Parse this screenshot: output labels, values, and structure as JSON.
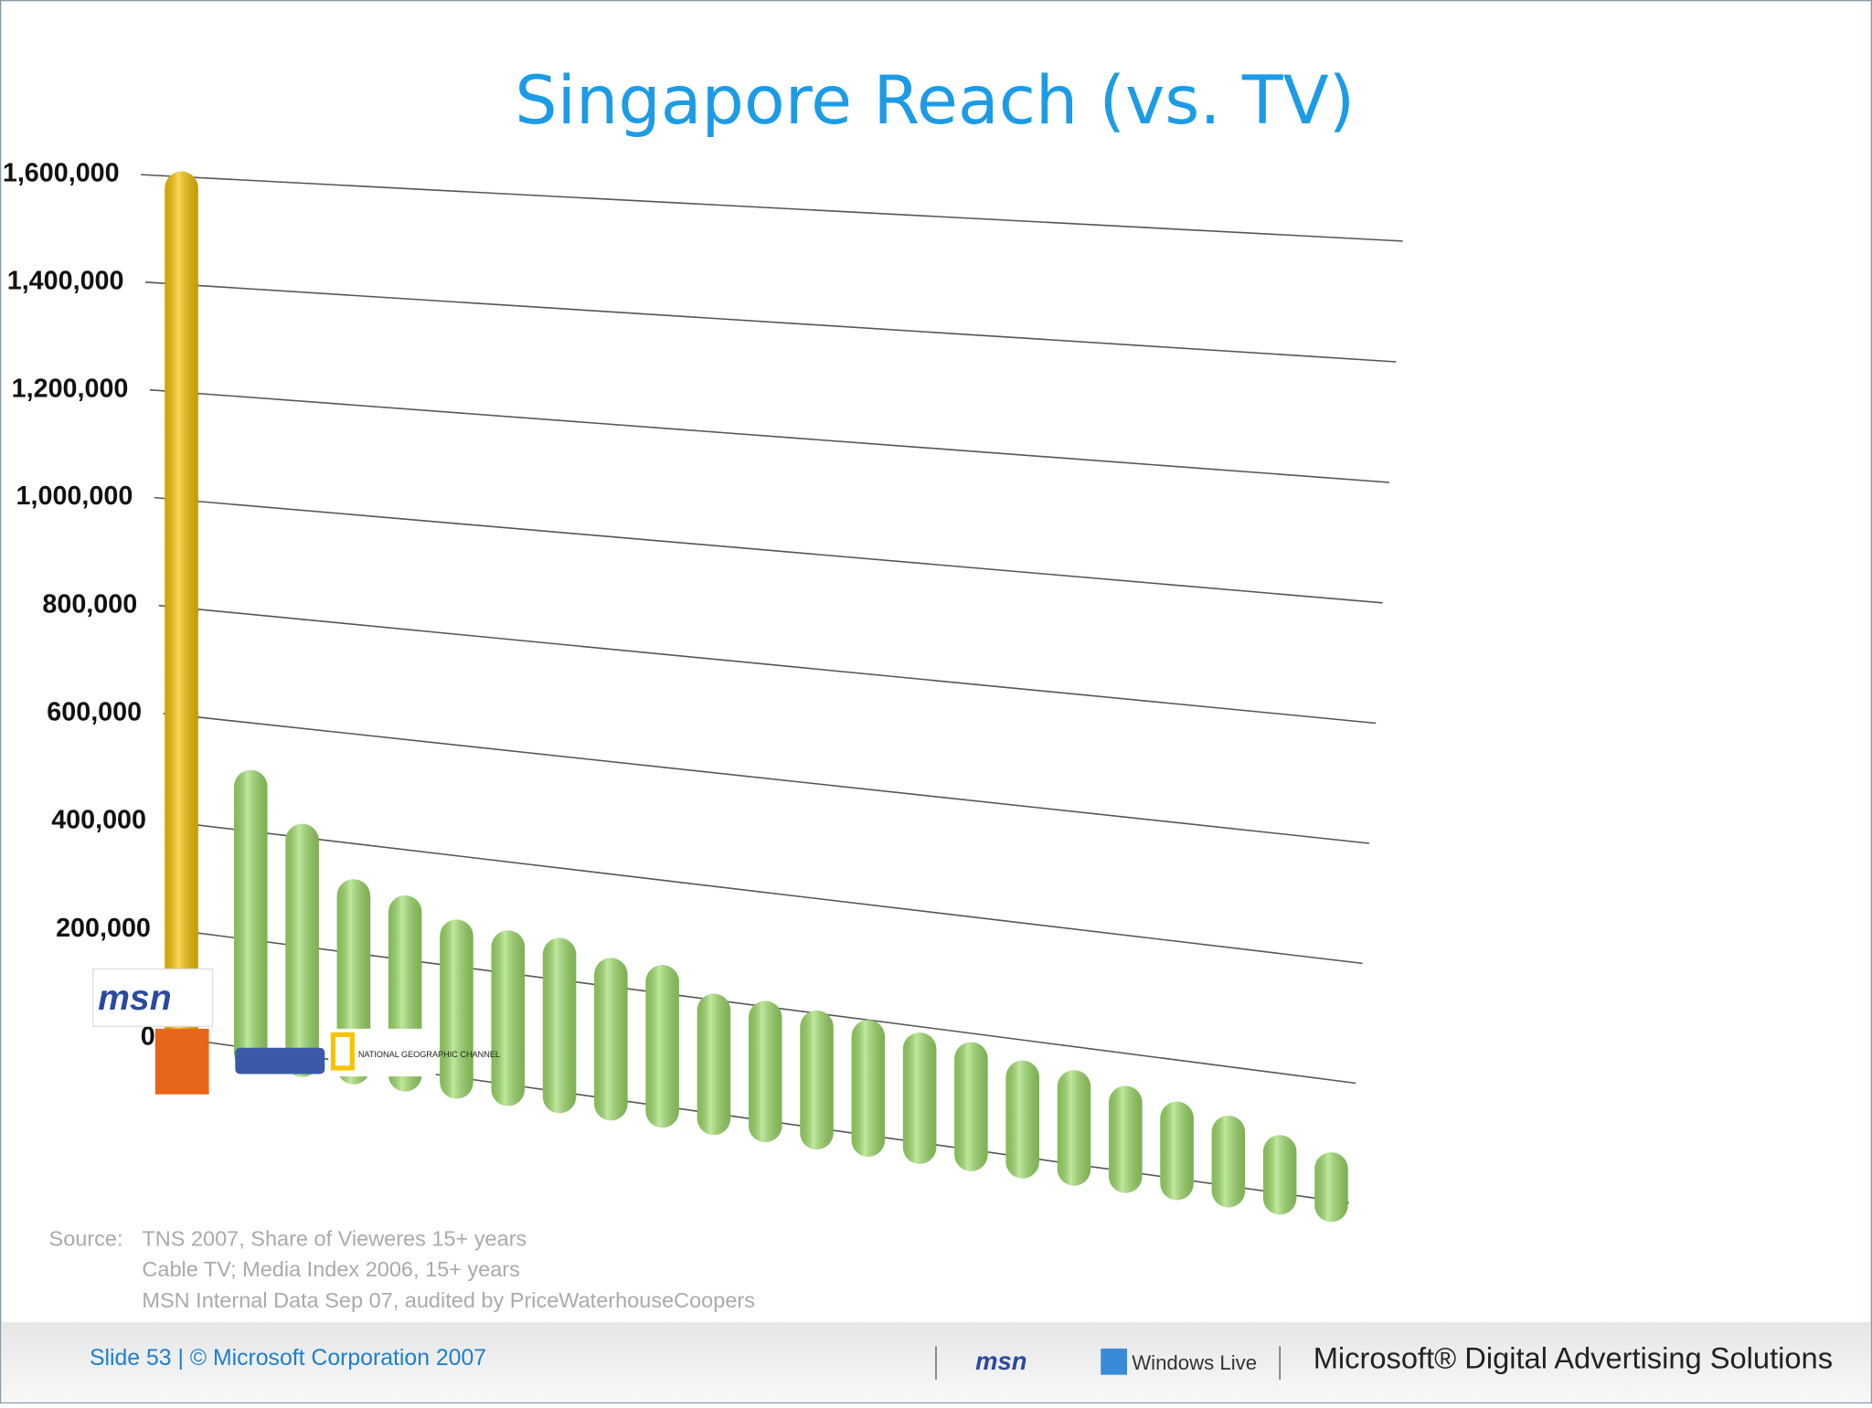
{
  "chart_data": {
    "type": "bar3d",
    "title": "Singapore Reach (vs. TV)",
    "categories": [
      null,
      null,
      null,
      null,
      null,
      null,
      null,
      null,
      null,
      null,
      null,
      null,
      null,
      null,
      null,
      null,
      null,
      null,
      null,
      null,
      null,
      null,
      null
    ],
    "values": [
      1610000,
      513000,
      425000,
      335000,
      317000,
      285000,
      277000,
      275000,
      251000,
      250000,
      211000,
      210000,
      205000,
      200000,
      190000,
      185000,
      165000,
      160000,
      145000,
      130000,
      118000,
      97000,
      80000
    ],
    "colors": [
      "#f7c300",
      "#9ddc68",
      "#9ddc68",
      "#9ddc68",
      "#9ddc68",
      "#9ddc68",
      "#9ddc68",
      "#9ddc68",
      "#9ddc68",
      "#9ddc68",
      "#9ddc68",
      "#9ddc68",
      "#9ddc68",
      "#9ddc68",
      "#9ddc68",
      "#9ddc68",
      "#9ddc68",
      "#9ddc68",
      "#9ddc68",
      "#9ddc68",
      "#9ddc68",
      "#9ddc68",
      "#9ddc68"
    ],
    "ylim": [
      0,
      1600000
    ],
    "yticks": [
      0,
      {
        "value": 200000,
        "label": "200,000"
      },
      {
        "value": 400000,
        "label": "400,000"
      },
      {
        "value": 600000,
        "label": "600,000"
      },
      {
        "value": 800000,
        "label": "800,000"
      },
      {
        "value": 1000000,
        "label": "1,000,000"
      },
      {
        "value": 1200000,
        "label": "1,200,000"
      },
      {
        "value": 1400000,
        "label": "1,400,000"
      },
      {
        "value": 1600000,
        "label": "1,600,000"
      }
    ],
    "grid": true,
    "logos": [
      "msn",
      "NATIONAL GEOGRAPHIC CHANNEL"
    ]
  },
  "source": {
    "label": "Source:",
    "lines": [
      "TNS 2007, Share of Vieweres 15+ years",
      "Cable TV; Media Index 2006, 15+ years",
      "MSN Internal Data Sep 07, audited by PriceWaterhouseCoopers"
    ]
  },
  "footer": {
    "slide": "Slide 53 | © Microsoft Corporation 2007",
    "brand1": "msn",
    "brand2": "Windows Live",
    "brand3": "Microsoft® Digital Advertising Solutions"
  }
}
